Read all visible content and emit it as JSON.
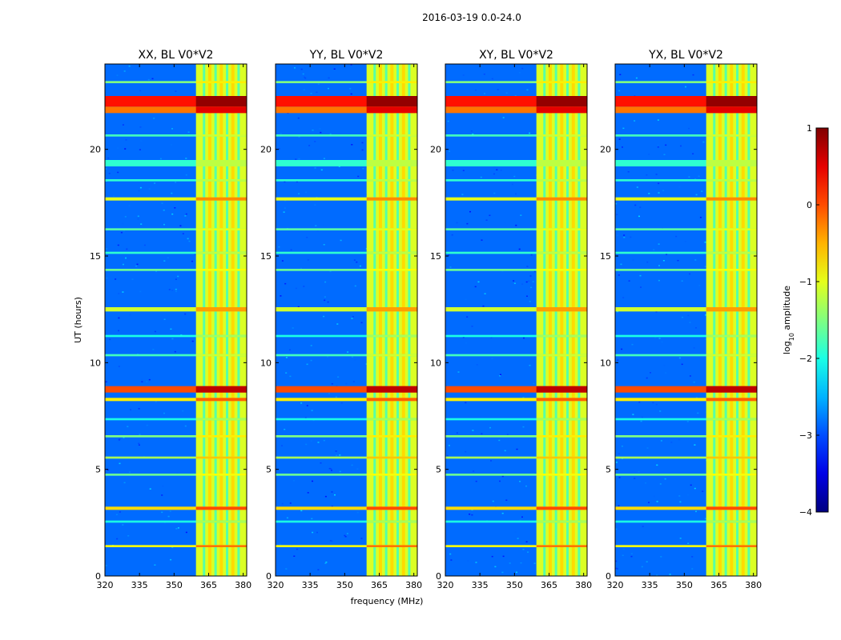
{
  "chart_data": {
    "type": "heatmap",
    "suptitle": "2016-03-19 0.0-24.0",
    "xlabel": "frequency (MHz)",
    "ylabel": "UT (hours)",
    "xlim": [
      320,
      381.5
    ],
    "ylim": [
      0,
      24
    ],
    "x_ticks": [
      "320",
      "335",
      "350",
      "365",
      "380"
    ],
    "y_ticks": [
      "0",
      "5",
      "10",
      "15",
      "20"
    ],
    "panels": [
      {
        "title": "XX, BL V0*V2"
      },
      {
        "title": "YY, BL V0*V2"
      },
      {
        "title": "XY, BL V0*V2"
      },
      {
        "title": "YX, BL V0*V2"
      }
    ],
    "colorbar": {
      "label_base": "log",
      "label_sub": "10",
      "label_rest": " amplitude",
      "range": [
        -4,
        1
      ],
      "ticks": [
        "1",
        "0",
        "−1",
        "−2",
        "−3",
        "−4"
      ]
    },
    "band": {
      "occupied_mhz": [
        359.5,
        381.5
      ],
      "channel_edges_mhz": [
        363,
        368,
        373,
        378
      ]
    },
    "bright_hours": [
      {
        "t0": 22.0,
        "t1": 22.5,
        "v": 0.7
      },
      {
        "t0": 21.7,
        "t1": 22.0,
        "v": 0.2
      },
      {
        "t0": 17.6,
        "t1": 17.75,
        "v": -0.6
      },
      {
        "t0": 19.2,
        "t1": 19.5,
        "v": -1.5
      },
      {
        "t0": 12.4,
        "t1": 12.6,
        "v": -0.7
      },
      {
        "t0": 8.6,
        "t1": 8.9,
        "v": 0.4
      },
      {
        "t0": 8.2,
        "t1": 8.35,
        "v": -0.4
      },
      {
        "t0": 3.1,
        "t1": 3.25,
        "v": -0.3
      },
      {
        "t0": 1.35,
        "t1": 1.45,
        "v": -0.5
      },
      {
        "t0": 5.5,
        "t1": 5.6,
        "v": -0.9
      },
      {
        "t0": 6.5,
        "t1": 6.6,
        "v": -1.1
      },
      {
        "t0": 4.7,
        "t1": 4.8,
        "v": -1.2
      },
      {
        "t0": 10.3,
        "t1": 10.4,
        "v": -1.4
      },
      {
        "t0": 14.3,
        "t1": 14.4,
        "v": -1.2
      },
      {
        "t0": 16.2,
        "t1": 16.3,
        "v": -1.3
      },
      {
        "t0": 23.1,
        "t1": 23.2,
        "v": -1.1
      },
      {
        "t0": 20.6,
        "t1": 20.7,
        "v": -1.4
      },
      {
        "t0": 18.5,
        "t1": 18.6,
        "v": -1.5
      },
      {
        "t0": 15.1,
        "t1": 15.2,
        "v": -1.5
      },
      {
        "t0": 11.2,
        "t1": 11.3,
        "v": -1.6
      },
      {
        "t0": 7.3,
        "t1": 7.4,
        "v": -1.6
      },
      {
        "t0": 2.5,
        "t1": 2.6,
        "v": -1.6
      }
    ]
  }
}
